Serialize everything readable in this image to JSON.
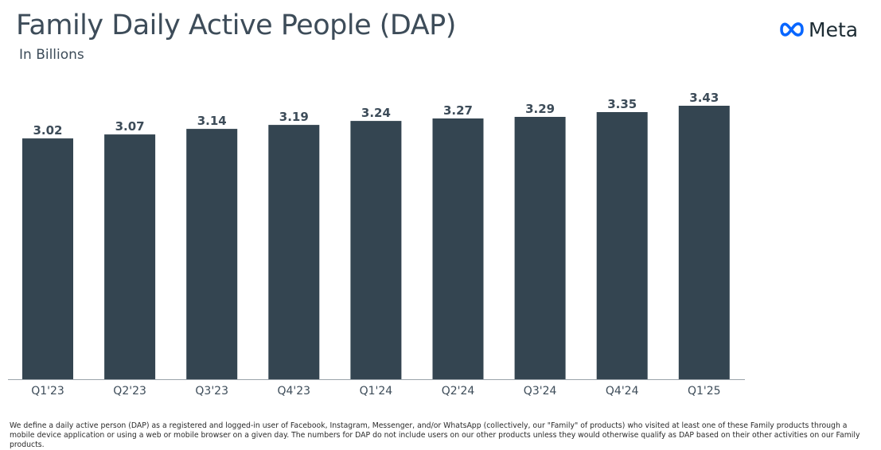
{
  "header": {
    "title": "Family Daily Active People (DAP)",
    "subtitle": "In Billions"
  },
  "logo": {
    "text": "Meta",
    "icon": "meta-infinity-icon",
    "icon_color": "#0866ff"
  },
  "chart_data": {
    "type": "bar",
    "title": "Family Daily Active People (DAP)",
    "subtitle": "In Billions",
    "categories": [
      "Q1'23",
      "Q2'23",
      "Q3'23",
      "Q4'23",
      "Q1'24",
      "Q2'24",
      "Q3'24",
      "Q4'24",
      "Q1'25"
    ],
    "values": [
      3.02,
      3.07,
      3.14,
      3.19,
      3.24,
      3.27,
      3.29,
      3.35,
      3.43
    ],
    "value_labels": [
      "3.02",
      "3.07",
      "3.14",
      "3.19",
      "3.24",
      "3.27",
      "3.29",
      "3.35",
      "3.43"
    ],
    "ylim": [
      0,
      3.43
    ],
    "grid": false,
    "bar_color": "#344551",
    "axis_color": "#9aa3aa",
    "label_color": "#3d4c59"
  },
  "footnote": "We define a daily active person (DAP) as a registered and logged-in user of Facebook, Instagram, Messenger, and/or WhatsApp (collectively, our \"Family\" of products) who visited at least one of these Family products through a mobile device application or using a web or mobile browser on a given day. The numbers for DAP do not include users on our other products unless they would otherwise qualify as DAP based on their other activities on our Family products."
}
